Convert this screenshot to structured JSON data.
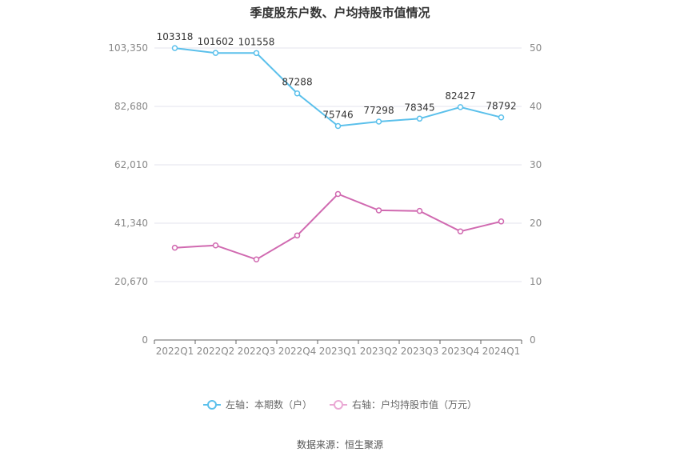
{
  "chart_data": {
    "type": "line",
    "title": "季度股东户数、户均持股市值情况",
    "categories": [
      "2022Q1",
      "2022Q2",
      "2022Q3",
      "2022Q4",
      "2023Q1",
      "2023Q2",
      "2023Q3",
      "2023Q4",
      "2024Q1"
    ],
    "left_axis": {
      "min": 0,
      "max": 103350,
      "ticks": [
        "0",
        "20,670",
        "41,340",
        "62,010",
        "82,680",
        "103,350"
      ]
    },
    "right_axis": {
      "min": 0,
      "max": 50,
      "ticks": [
        "0",
        "10",
        "20",
        "30",
        "40",
        "50"
      ]
    },
    "series": [
      {
        "name": "左轴：本期数（户）",
        "axis": "left",
        "color": "#5bc0eb",
        "values": [
          103318,
          101602,
          101558,
          87288,
          75746,
          77298,
          78345,
          82427,
          78792
        ],
        "labels": [
          "103318",
          "101602",
          "101558",
          "87288",
          "75746",
          "77298",
          "78345",
          "82427",
          "78792"
        ]
      },
      {
        "name": "右轴：户均持股市值（万元）",
        "axis": "right",
        "color": "#d069b0",
        "values": [
          15.8,
          16.2,
          13.8,
          17.9,
          25.0,
          22.2,
          22.1,
          18.6,
          20.3
        ]
      }
    ],
    "grid": true,
    "legend_position": "bottom"
  },
  "source": "数据来源：恒生聚源"
}
